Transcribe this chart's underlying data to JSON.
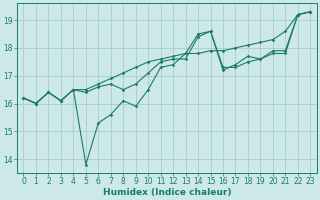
{
  "xlabel": "Humidex (Indice chaleur)",
  "ylabel": "",
  "bg_color": "#cce8e8",
  "grid_color": "#aacccc",
  "line_color": "#1a7a6e",
  "spine_color": "#1a7a6e",
  "xlim": [
    -0.5,
    23.5
  ],
  "ylim": [
    13.5,
    19.6
  ],
  "xticks": [
    0,
    1,
    2,
    3,
    4,
    5,
    6,
    7,
    8,
    9,
    10,
    11,
    12,
    13,
    14,
    15,
    16,
    17,
    18,
    19,
    20,
    21,
    22,
    23
  ],
  "yticks": [
    14,
    15,
    16,
    17,
    18,
    19
  ],
  "series1_x": [
    0,
    1,
    2,
    3,
    4,
    5,
    6,
    7,
    8,
    9,
    10,
    11,
    12,
    13,
    14,
    15,
    16,
    17,
    18,
    19,
    20,
    21,
    22,
    23
  ],
  "series1_y": [
    16.2,
    16.0,
    16.4,
    16.1,
    16.5,
    16.5,
    16.7,
    16.9,
    17.1,
    17.3,
    17.5,
    17.6,
    17.7,
    17.8,
    17.8,
    17.9,
    17.9,
    18.0,
    18.1,
    18.2,
    18.3,
    18.6,
    19.2,
    19.3
  ],
  "series2_x": [
    0,
    1,
    2,
    3,
    4,
    5,
    6,
    7,
    8,
    9,
    10,
    11,
    12,
    13,
    14,
    15,
    16,
    17,
    18,
    19,
    20,
    21,
    22,
    23
  ],
  "series2_y": [
    16.2,
    16.0,
    16.4,
    16.1,
    16.5,
    13.8,
    15.3,
    15.6,
    16.1,
    15.9,
    16.5,
    17.3,
    17.4,
    17.8,
    18.5,
    18.6,
    17.3,
    17.3,
    17.5,
    17.6,
    17.8,
    17.8,
    19.2,
    19.3
  ],
  "series3_x": [
    0,
    1,
    2,
    3,
    4,
    5,
    6,
    7,
    8,
    9,
    10,
    11,
    12,
    13,
    14,
    15,
    16,
    17,
    18,
    19,
    20,
    21,
    22,
    23
  ],
  "series3_y": [
    16.2,
    16.0,
    16.4,
    16.1,
    16.5,
    16.4,
    16.6,
    16.7,
    16.5,
    16.7,
    17.1,
    17.5,
    17.6,
    17.6,
    18.4,
    18.6,
    17.2,
    17.4,
    17.7,
    17.6,
    17.9,
    17.9,
    19.2,
    19.3
  ],
  "tick_fontsize": 5.5,
  "xlabel_fontsize": 6.5,
  "marker_size": 1.8,
  "line_width": 0.8
}
